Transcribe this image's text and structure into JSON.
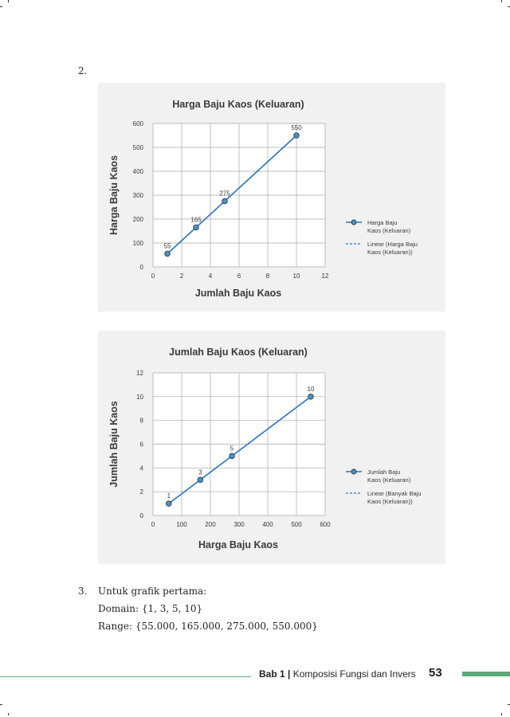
{
  "item2_number": "2.",
  "colors": {
    "series_line": "#2e75b6",
    "marker_fill": "#4f93b8",
    "marker_stroke": "#1f3f5f",
    "grid": "#a6a6a6",
    "plot_bg": "#ffffff",
    "chart_bg": "#f1f1f2",
    "footer_green": "#5aa97a"
  },
  "chart_data": [
    {
      "type": "line",
      "title": "Harga Baju Kaos (Keluaran)",
      "xlabel": "Jumlah Baju Kaos",
      "ylabel": "Harga Baju Kaos",
      "xlim": [
        0,
        12
      ],
      "ylim": [
        0,
        600
      ],
      "xticks": [
        0,
        2,
        4,
        6,
        8,
        10,
        12
      ],
      "yticks": [
        0,
        100,
        200,
        300,
        400,
        500,
        600
      ],
      "grid": true,
      "legend_position": "right",
      "series": [
        {
          "name": "Harga Baju Kaos (Keluaran)",
          "x": [
            1,
            3,
            5,
            10
          ],
          "y": [
            55,
            165,
            275,
            550
          ],
          "data_labels": [
            "55",
            "165",
            "275",
            "550"
          ],
          "markers": true
        },
        {
          "name": "Linear (Harga Baju Kaos (Keluaran))",
          "style": "dashed",
          "x": [
            1,
            10
          ],
          "y": [
            55,
            550
          ]
        }
      ]
    },
    {
      "type": "line",
      "title": "Jumlah Baju Kaos (Keluaran)",
      "xlabel": "Harga Baju Kaos",
      "ylabel": "Jumlah Baju Kaos",
      "xlim": [
        0,
        600
      ],
      "ylim": [
        0,
        12
      ],
      "xticks": [
        0,
        100,
        200,
        300,
        400,
        500,
        600
      ],
      "yticks": [
        0,
        2,
        4,
        6,
        8,
        10,
        12
      ],
      "grid": true,
      "legend_position": "right",
      "series": [
        {
          "name": "Jumlah Baju Kaos (Keluaran)",
          "x": [
            55,
            165,
            275,
            550
          ],
          "y": [
            1,
            3,
            5,
            10
          ],
          "data_labels": [
            "1",
            "3",
            "5",
            "10"
          ],
          "markers": true
        },
        {
          "name": "Linear (Banyak Baju Kaos (Keluaran))",
          "style": "dashed",
          "x": [
            55,
            550
          ],
          "y": [
            1,
            10
          ]
        }
      ]
    }
  ],
  "answer": {
    "number": "3.",
    "intro": "Untuk grafik pertama:",
    "domain_label": "Domain:",
    "domain_value": "{1, 3, 5, 10}",
    "range_label": "Range:",
    "range_value": "{55.000, 165.000, 275.000, 550.000}"
  },
  "footer": {
    "chapter": "Bab 1",
    "separator": "|",
    "chapter_title": "Komposisi Fungsi dan Invers",
    "page_number": "53"
  }
}
